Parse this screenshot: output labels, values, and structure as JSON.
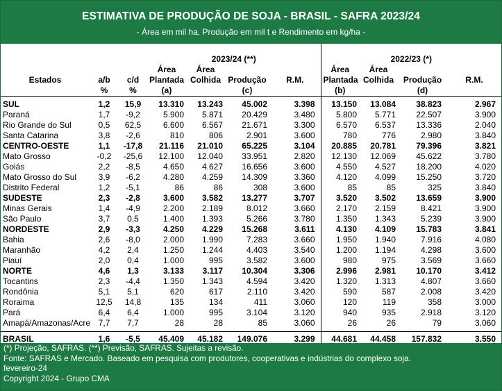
{
  "title": "ESTIMATIVA DE PRODUÇÃO DE SOJA - BRASIL - SAFRA 2023/24",
  "subtitle": "- Área em mil ha, Produção em mil t e Rendimento em kg/ha -",
  "group_2324": "2023/24 (**)",
  "group_2223": "2022/23 (*)",
  "headers": {
    "estados": "Estados",
    "ab_top": "a/b",
    "ab_bottom": "%",
    "cd_top": "c/d",
    "cd_bottom": "%",
    "area_pl_1": "Área",
    "area_pl_2": "Plantada",
    "area_pl_3": "(a)",
    "area_co_1": "Área",
    "area_co_2": "Colhida",
    "prod_1": "Produção",
    "prod_2": "(c)",
    "rm": "R.M.",
    "area_pl_b1": "Área",
    "area_pl_b2": "Plantada",
    "area_pl_b3": "(b)",
    "area_co_b1": "Área",
    "area_co_b2": "Colhida",
    "prod_b1": "Produção",
    "prod_b2": "(d)",
    "rm_b": "R.M."
  },
  "rows": [
    {
      "estado": "SUL",
      "ab": "1,2",
      "cd": "15,9",
      "apl": "13.310",
      "aco": "13.243",
      "prod": "45.002",
      "rm": "3.398",
      "aplb": "13.150",
      "acob": "13.084",
      "prodb": "38.823",
      "rmb": "2.967"
    },
    {
      "estado": "Paraná",
      "ab": "1,7",
      "cd": "-9,2",
      "apl": "5.900",
      "aco": "5.871",
      "prod": "20.429",
      "rm": "3.480",
      "aplb": "5.800",
      "acob": "5.771",
      "prodb": "22.507",
      "rmb": "3.900"
    },
    {
      "estado": "Rio Grande do Sul",
      "ab": "0,5",
      "cd": "62,5",
      "apl": "6.600",
      "aco": "6.567",
      "prod": "21.671",
      "rm": "3.300",
      "aplb": "6.570",
      "acob": "6.537",
      "prodb": "13.336",
      "rmb": "2.040"
    },
    {
      "estado": "Santa Catarina",
      "ab": "3,8",
      "cd": "-2,6",
      "apl": "810",
      "aco": "806",
      "prod": "2.901",
      "rm": "3.600",
      "aplb": "780",
      "acob": "776",
      "prodb": "2.980",
      "rmb": "3.840"
    },
    {
      "estado": "CENTRO-OESTE",
      "ab": "1,1",
      "cd": "-17,8",
      "apl": "21.116",
      "aco": "21.010",
      "prod": "65.225",
      "rm": "3.104",
      "aplb": "20.885",
      "acob": "20.781",
      "prodb": "79.396",
      "rmb": "3.821"
    },
    {
      "estado": "Mato Grosso",
      "ab": "-0,2",
      "cd": "-25,6",
      "apl": "12.100",
      "aco": "12.040",
      "prod": "33.951",
      "rm": "2.820",
      "aplb": "12.130",
      "acob": "12.069",
      "prodb": "45.622",
      "rmb": "3.780"
    },
    {
      "estado": "Goiás",
      "ab": "2,2",
      "cd": "-8,5",
      "apl": "4.650",
      "aco": "4.627",
      "prod": "16.656",
      "rm": "3.600",
      "aplb": "4.550",
      "acob": "4.527",
      "prodb": "18.200",
      "rmb": "4.020"
    },
    {
      "estado": "Mato Grosso do Sul",
      "ab": "3,9",
      "cd": "-6,2",
      "apl": "4.280",
      "aco": "4.259",
      "prod": "14.309",
      "rm": "3.360",
      "aplb": "4.120",
      "acob": "4.099",
      "prodb": "15.250",
      "rmb": "3.720"
    },
    {
      "estado": "Distrito Federal",
      "ab": "1,2",
      "cd": "-5,1",
      "apl": "86",
      "aco": "86",
      "prod": "308",
      "rm": "3.600",
      "aplb": "85",
      "acob": "85",
      "prodb": "325",
      "rmb": "3.840"
    },
    {
      "estado": "SUDESTE",
      "ab": "2,3",
      "cd": "-2,8",
      "apl": "3.600",
      "aco": "3.582",
      "prod": "13.277",
      "rm": "3.707",
      "aplb": "3.520",
      "acob": "3.502",
      "prodb": "13.659",
      "rmb": "3.900"
    },
    {
      "estado": "Minas Gerais",
      "ab": "1,4",
      "cd": "-4,9",
      "apl": "2.200",
      "aco": "2.189",
      "prod": "8.012",
      "rm": "3.660",
      "aplb": "2.170",
      "acob": "2.159",
      "prodb": "8.421",
      "rmb": "3.900"
    },
    {
      "estado": "São Paulo",
      "ab": "3,7",
      "cd": "0,5",
      "apl": "1.400",
      "aco": "1.393",
      "prod": "5.266",
      "rm": "3.780",
      "aplb": "1.350",
      "acob": "1.343",
      "prodb": "5.239",
      "rmb": "3.900"
    },
    {
      "estado": "NORDESTE",
      "ab": "2,9",
      "cd": "-3,3",
      "apl": "4.250",
      "aco": "4.229",
      "prod": "15.268",
      "rm": "3.611",
      "aplb": "4.130",
      "acob": "4.109",
      "prodb": "15.783",
      "rmb": "3.841"
    },
    {
      "estado": "Bahia",
      "ab": "2,6",
      "cd": "-8,0",
      "apl": "2.000",
      "aco": "1.990",
      "prod": "7.283",
      "rm": "3.660",
      "aplb": "1.950",
      "acob": "1.940",
      "prodb": "7.916",
      "rmb": "4.080"
    },
    {
      "estado": "Maranhão",
      "ab": "4,2",
      "cd": "2,4",
      "apl": "1.250",
      "aco": "1.244",
      "prod": "4.403",
      "rm": "3.540",
      "aplb": "1.200",
      "acob": "1.194",
      "prodb": "4.298",
      "rmb": "3.600"
    },
    {
      "estado": "Piauí",
      "ab": "2,0",
      "cd": "0,4",
      "apl": "1.000",
      "aco": "995",
      "prod": "3.582",
      "rm": "3.600",
      "aplb": "980",
      "acob": "975",
      "prodb": "3.569",
      "rmb": "3.660"
    },
    {
      "estado": "NORTE",
      "ab": "4,6",
      "cd": "1,3",
      "apl": "3.133",
      "aco": "3.117",
      "prod": "10.304",
      "rm": "3.306",
      "aplb": "2.996",
      "acob": "2.981",
      "prodb": "10.170",
      "rmb": "3.412"
    },
    {
      "estado": "Tocantins",
      "ab": "2,3",
      "cd": "-4,4",
      "apl": "1.350",
      "aco": "1.343",
      "prod": "4.594",
      "rm": "3.420",
      "aplb": "1.320",
      "acob": "1.313",
      "prodb": "4.807",
      "rmb": "3.660"
    },
    {
      "estado": "Rondônia",
      "ab": "5,1",
      "cd": "5,1",
      "apl": "620",
      "aco": "617",
      "prod": "2.110",
      "rm": "3.420",
      "aplb": "590",
      "acob": "587",
      "prodb": "2.008",
      "rmb": "3.420"
    },
    {
      "estado": "Roraima",
      "ab": "12,5",
      "cd": "14,8",
      "apl": "135",
      "aco": "134",
      "prod": "411",
      "rm": "3.060",
      "aplb": "120",
      "acob": "119",
      "prodb": "358",
      "rmb": "3.000"
    },
    {
      "estado": "Pará",
      "ab": "6,4",
      "cd": "6,4",
      "apl": "1.000",
      "aco": "995",
      "prod": "3.104",
      "rm": "3.120",
      "aplb": "940",
      "acob": "935",
      "prodb": "2.918",
      "rmb": "3.120"
    },
    {
      "estado": "Amapá/Amazonas/Acre",
      "ab": "7,7",
      "cd": "7,7",
      "apl": "28",
      "aco": "28",
      "prod": "85",
      "rm": "3.060",
      "aplb": "26",
      "acob": "26",
      "prodb": "79",
      "rmb": "3.060"
    }
  ],
  "total": {
    "estado": "BRASIL",
    "ab": "1,6",
    "cd": "-5,5",
    "apl": "45.409",
    "aco": "45.182",
    "prod": "149.076",
    "rm": "3.299",
    "aplb": "44.681",
    "acob": "44.458",
    "prodb": "157.832",
    "rmb": "3.550"
  },
  "footer": {
    "note": "(*) Projeção, SAFRAS. (**) Previsão, SAFRAS. Sujeitas a revisão.",
    "source": "Fonte: SAFRAS e Mercado. Baseado em pesquisa com produtores, cooperativas e indústrias do complexo soja.",
    "date": "fevereiro-24",
    "copyright": "Copyright 2024 - Grupo CMA"
  },
  "colors": {
    "header_bg": "#1e7a45",
    "footer_bg": "#1e7a45",
    "header_text": "#ffffff"
  }
}
